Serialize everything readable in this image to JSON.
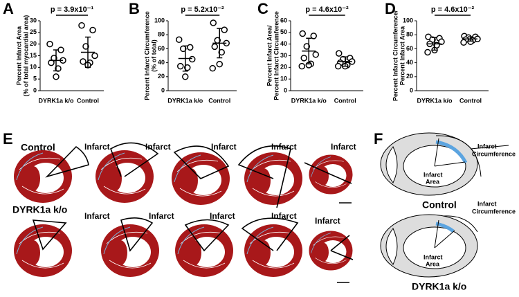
{
  "chart_data": [
    {
      "type": "strip",
      "panel": "A",
      "title": "p = 3.9x10⁻¹",
      "ylabel": [
        "Percent Infarct Area",
        "(% of total myocardial area)"
      ],
      "categories": [
        "DYRK1a k/o",
        "Control"
      ],
      "values": [
        [
          20,
          17.5,
          14,
          13,
          12,
          9.5,
          6
        ],
        [
          28,
          26,
          19,
          15,
          12.5,
          12,
          11
        ]
      ],
      "mean": [
        13,
        16.5
      ],
      "sd": [
        4.5,
        6.5
      ],
      "ylim": [
        0,
        30
      ],
      "yticks": [
        0,
        5,
        10,
        15,
        20,
        25,
        30
      ]
    },
    {
      "type": "strip",
      "panel": "B",
      "title": "p = 5.2x10⁻²",
      "ylabel": [
        "Percent Infarct Circumference",
        "(% of total)"
      ],
      "categories": [
        "DYRK1a k/o",
        "Control"
      ],
      "values": [
        [
          73,
          62,
          60,
          45,
          35,
          33,
          20
        ],
        [
          97,
          87,
          72,
          68,
          63,
          55,
          38,
          32
        ]
      ],
      "mean": [
        46,
        68
      ],
      "sd": [
        18,
        21
      ],
      "ylim": [
        0,
        100
      ],
      "yticks": [
        0,
        20,
        40,
        60,
        80,
        100
      ]
    },
    {
      "type": "strip",
      "panel": "C",
      "title": "p = 4.6x10⁻²",
      "ylabel": [
        "Percent Infarct Area/",
        "Percent Infarct Circumference"
      ],
      "categories": [
        "DYRK1a k/o",
        "Control"
      ],
      "values": [
        [
          49,
          47,
          38,
          31,
          28,
          23,
          22,
          21
        ],
        [
          32,
          28,
          27,
          25,
          24,
          22,
          21,
          21
        ]
      ],
      "mean": [
        34,
        25
      ],
      "sd": [
        11,
        4
      ],
      "ylim": [
        0,
        60
      ],
      "yticks": [
        0,
        10,
        20,
        30,
        40,
        50,
        60
      ]
    },
    {
      "type": "strip",
      "panel": "D",
      "title": "p = 4.6x10⁻²",
      "ylabel": [
        "Percent Infarct Circumference/",
        "Percent Infarct Area"
      ],
      "categories": [
        "DYRK1a k/o",
        "Control"
      ],
      "values": [
        [
          77,
          75,
          73,
          70,
          67,
          65,
          58,
          55
        ],
        [
          78,
          77,
          76,
          74,
          73,
          72,
          70,
          69
        ]
      ],
      "mean": [
        67,
        74
      ],
      "sd": [
        9,
        3
      ],
      "ylim": [
        0,
        100
      ],
      "yticks": [
        0,
        20,
        40,
        60,
        80,
        100
      ]
    }
  ],
  "histology": {
    "panel": "E",
    "row_labels": [
      "Control",
      "DYRK1a k/o"
    ],
    "top_labels": [
      "Infarct",
      "Infarct",
      "Infarct",
      "Infarct",
      "Infarct"
    ],
    "bottom_labels": [
      "Infarct",
      "Infarct",
      "Infarct",
      "Infarct",
      "Infarct"
    ]
  },
  "schematic": {
    "panel": "F",
    "diagrams": [
      {
        "caption": "Control",
        "circumference_label": [
          "Infarct",
          "Circumference"
        ],
        "area_label": [
          "Infarct",
          "Area"
        ]
      },
      {
        "caption": "DYRK1a k/o",
        "circumference_label": [
          "Infarct",
          "Circumference"
        ],
        "area_label": [
          "Infarct",
          "Area"
        ]
      }
    ]
  }
}
